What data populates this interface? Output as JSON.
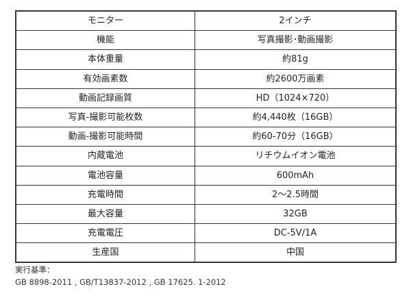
{
  "spec_table": {
    "rows": [
      {
        "label": "モニター",
        "value": "2インチ"
      },
      {
        "label": "機能",
        "value": "写真撮影･動画撮影"
      },
      {
        "label": "本体重量",
        "value": "約81g"
      },
      {
        "label": "有効画素数",
        "value": "約2600万画素"
      },
      {
        "label": "動画記録画質",
        "value": "HD（1024×720）"
      },
      {
        "label": "写真-撮影可能枚数",
        "value": "約4,440枚（16GB）"
      },
      {
        "label": "動画-撮影可能時間",
        "value": "約60-70分（16GB）"
      },
      {
        "label": "内蔵電池",
        "value": "リチウムイオン電池"
      },
      {
        "label": "電池容量",
        "value": "600mAh"
      },
      {
        "label": "充電時間",
        "value": "2～2.5時間"
      },
      {
        "label": "最大容量",
        "value": "32GB"
      },
      {
        "label": "充電電圧",
        "value": "DC-5V/1A"
      },
      {
        "label": "生産国",
        "value": "中国"
      }
    ]
  },
  "notes": {
    "heading": "実行基準：",
    "standards": "GB 8898-2011 , GB/T13837-2012 , GB 17625. 1-2012"
  }
}
